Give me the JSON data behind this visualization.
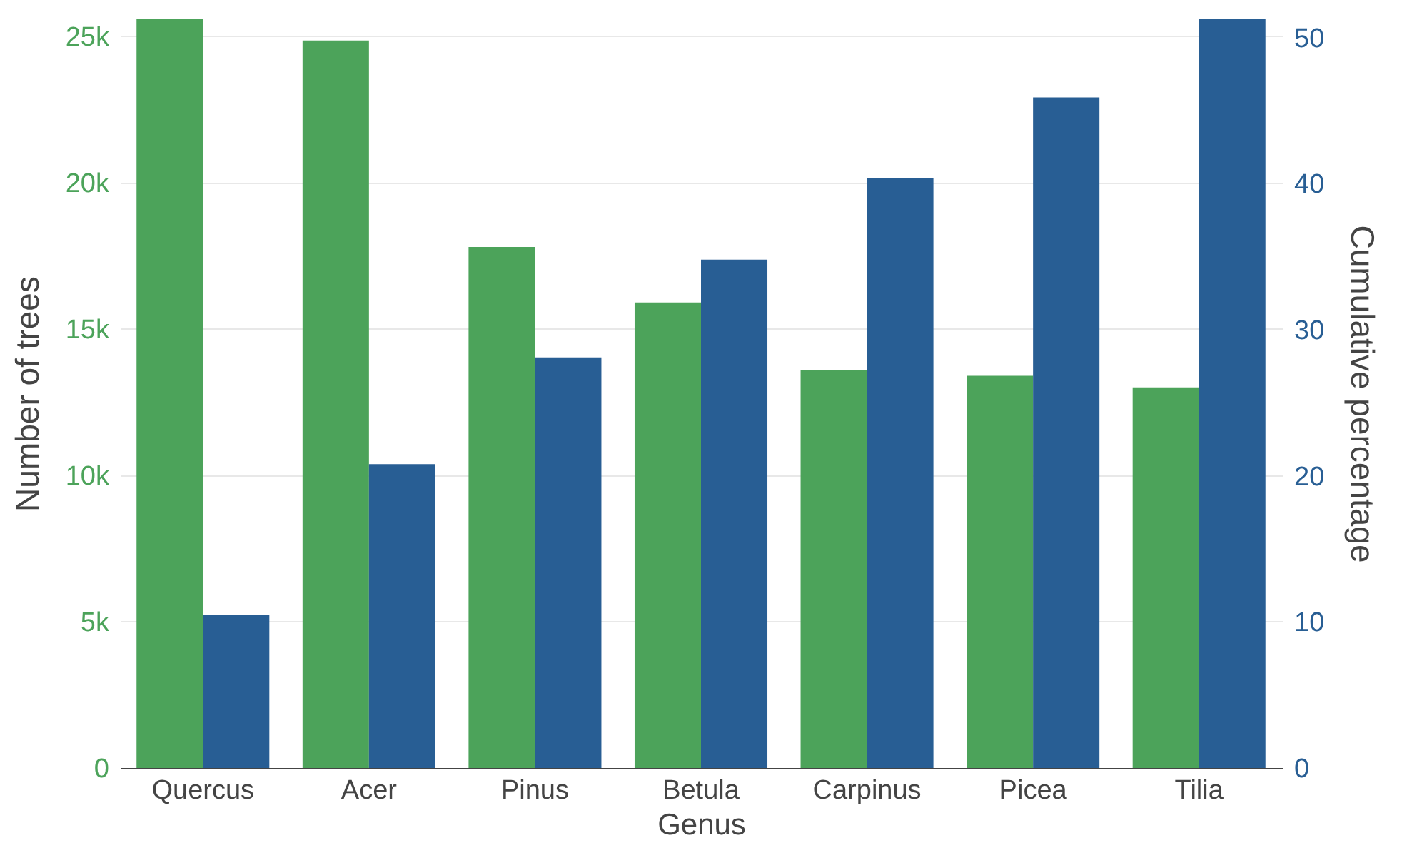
{
  "chart_data": {
    "type": "bar",
    "xlabel": "Genus",
    "ylabel": "Number of trees",
    "y2label": "Cumulative percentage",
    "categories": [
      "Quercus",
      "Acer",
      "Pinus",
      "Betula",
      "Carpinus",
      "Picea",
      "Tilia"
    ],
    "series": [
      {
        "color": "#4ca35a",
        "values": [
          25600,
          24850,
          17800,
          15900,
          13600,
          13400,
          13000
        ]
      },
      {
        "color": "#285e94",
        "axis": "y2",
        "values": [
          10.5,
          20.8,
          28.1,
          34.8,
          40.4,
          45.9,
          51.3
        ]
      }
    ],
    "ylim": [
      0,
      25600
    ],
    "yticks": [
      0,
      {
        "value": 5000,
        "label": "5k"
      },
      {
        "value": 10000,
        "label": "10k"
      },
      {
        "value": 15000,
        "label": "15k"
      },
      {
        "value": 20000,
        "label": "20k"
      },
      {
        "value": 25000,
        "label": "25k"
      }
    ],
    "y2lim": [
      0,
      51.3
    ],
    "y2ticks": [
      0,
      10,
      20,
      30,
      40,
      50
    ],
    "grid": "y"
  }
}
